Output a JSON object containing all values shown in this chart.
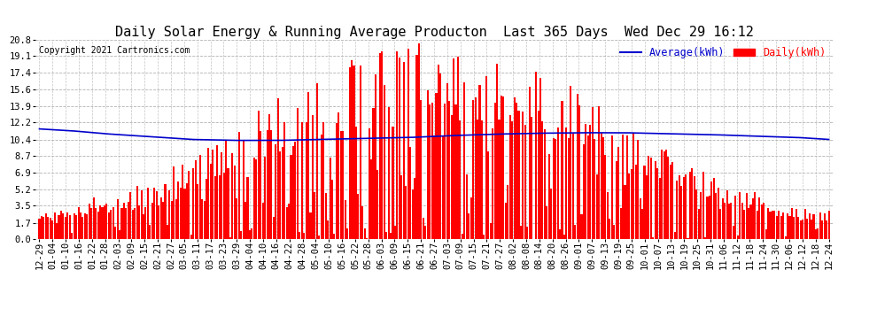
{
  "title": "Daily Solar Energy & Running Average Producton  Last 365 Days  Wed Dec 29 16:12",
  "copyright": "Copyright 2021 Cartronics.com",
  "legend_avg": "Average(kWh)",
  "legend_daily": "Daily(kWh)",
  "yticks": [
    0.0,
    1.7,
    3.5,
    5.2,
    6.9,
    8.7,
    10.4,
    12.2,
    13.9,
    15.6,
    17.4,
    19.1,
    20.8
  ],
  "ymax": 20.8,
  "ymin": 0.0,
  "bar_color": "#ff0000",
  "avg_color": "#0000cc",
  "background_color": "#ffffff",
  "plot_bg_color": "#ffffff",
  "grid_color": "#aaaaaa",
  "title_fontsize": 11,
  "tick_fontsize": 7.5,
  "xtick_labels": [
    "12-29",
    "01-04",
    "01-10",
    "01-16",
    "01-22",
    "01-28",
    "02-03",
    "02-09",
    "02-15",
    "02-21",
    "02-27",
    "03-05",
    "03-11",
    "03-17",
    "03-23",
    "03-29",
    "04-04",
    "04-10",
    "04-16",
    "04-22",
    "04-28",
    "05-04",
    "05-10",
    "05-16",
    "05-22",
    "05-28",
    "06-03",
    "06-09",
    "06-15",
    "06-21",
    "06-27",
    "07-03",
    "07-09",
    "07-15",
    "07-21",
    "07-27",
    "08-02",
    "08-08",
    "08-14",
    "08-20",
    "08-26",
    "09-01",
    "09-07",
    "09-13",
    "09-19",
    "09-25",
    "10-01",
    "10-07",
    "10-13",
    "10-19",
    "10-25",
    "10-31",
    "11-06",
    "11-12",
    "11-18",
    "11-24",
    "11-30",
    "12-06",
    "12-12",
    "12-18",
    "12-24"
  ],
  "n_days": 365,
  "avg_profile_x": [
    0,
    15,
    30,
    50,
    70,
    90,
    110,
    130,
    150,
    170,
    190,
    210,
    230,
    250,
    270,
    290,
    310,
    330,
    350,
    364
  ],
  "avg_profile_y": [
    11.5,
    11.3,
    11.0,
    10.7,
    10.4,
    10.3,
    10.3,
    10.4,
    10.5,
    10.6,
    10.8,
    10.95,
    11.05,
    11.1,
    11.1,
    11.0,
    10.9,
    10.75,
    10.6,
    10.4
  ]
}
